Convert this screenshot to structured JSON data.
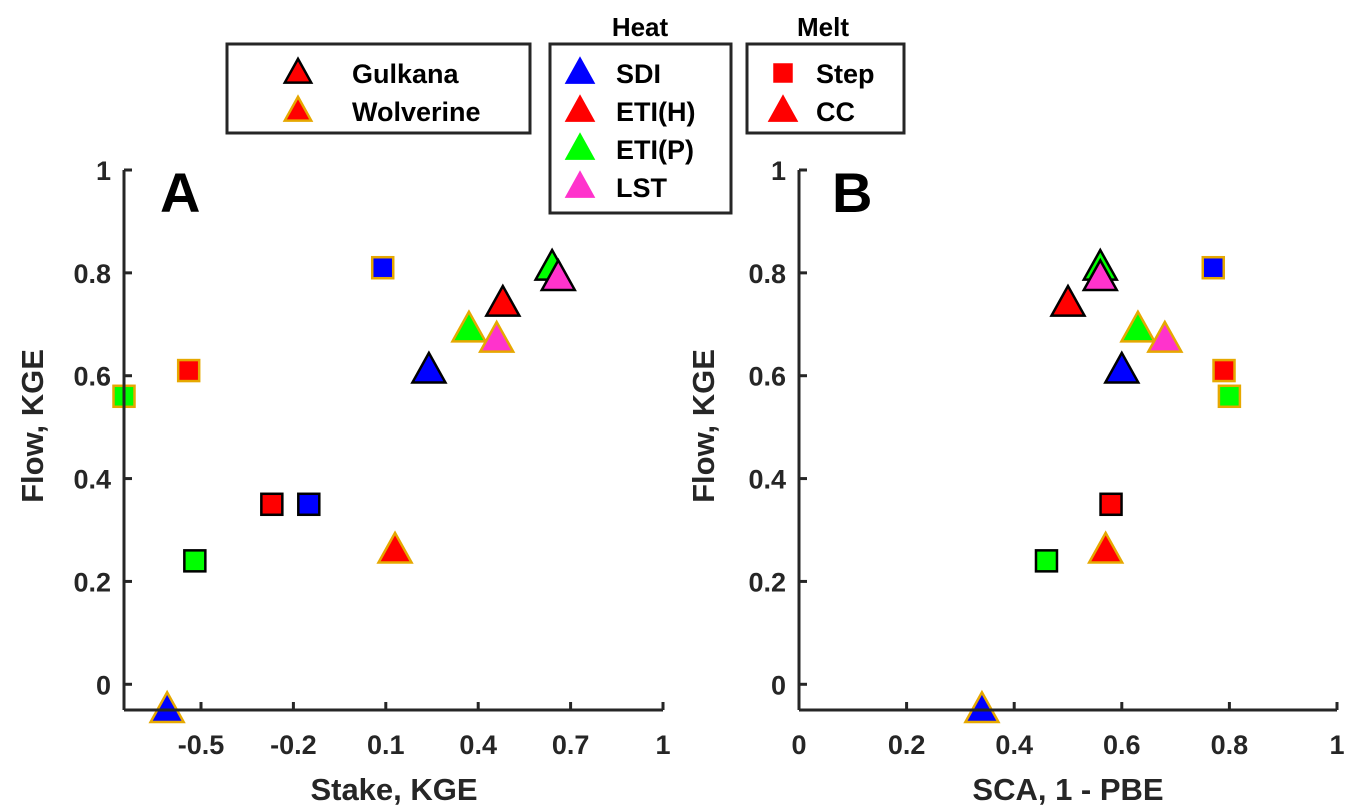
{
  "colors": {
    "SDI": "#0000ff",
    "ETI(H)": "#ff0000",
    "ETI(P)": "#00ff00",
    "LST": "#ff33cc",
    "Gulkana": "#000000",
    "Wolverine": "#e6a800",
    "axis": "#262626"
  },
  "legends": {
    "glacier": {
      "items": [
        {
          "label": "Gulkana",
          "fill": "#ff0000",
          "edge": "#000000",
          "marker": "triangle"
        },
        {
          "label": "Wolverine",
          "fill": "#ff0000",
          "edge": "#e6a800",
          "marker": "triangle"
        }
      ]
    },
    "heat": {
      "title": "Heat",
      "items": [
        {
          "label": "SDI",
          "fill": "#0000ff",
          "marker": "triangle"
        },
        {
          "label": "ETI(H)",
          "fill": "#ff0000",
          "marker": "triangle"
        },
        {
          "label": "ETI(P)",
          "fill": "#00ff00",
          "marker": "triangle"
        },
        {
          "label": "LST",
          "fill": "#ff33cc",
          "marker": "triangle"
        }
      ]
    },
    "melt": {
      "title": "Melt",
      "items": [
        {
          "label": "Step",
          "fill": "#ff0000",
          "marker": "square"
        },
        {
          "label": "CC",
          "fill": "#ff0000",
          "marker": "triangle"
        }
      ]
    }
  },
  "chart_data": [
    {
      "type": "scatter",
      "panel_letter": "A",
      "xlabel": "Stake, KGE",
      "ylabel": "Flow, KGE",
      "xlim": [
        -0.75,
        1.0
      ],
      "ylim": [
        -0.05,
        1.0
      ],
      "xticks": [
        -0.5,
        -0.2,
        0.1,
        0.4,
        0.7,
        1
      ],
      "xtick_labels": [
        "-0.5",
        "-0.2",
        "0.1",
        "0.4",
        "0.7",
        "1"
      ],
      "yticks": [
        0,
        0.2,
        0.4,
        0.6,
        0.8,
        1
      ],
      "ytick_labels": [
        "0",
        "0.2",
        "0.4",
        "0.6",
        "0.8",
        "1"
      ],
      "points": [
        {
          "x": -0.75,
          "y": 0.56,
          "heat": "ETI(P)",
          "melt": "Step",
          "glacier": "Wolverine"
        },
        {
          "x": -0.54,
          "y": 0.61,
          "heat": "ETI(H)",
          "melt": "Step",
          "glacier": "Wolverine"
        },
        {
          "x": 0.09,
          "y": 0.81,
          "heat": "SDI",
          "melt": "Step",
          "glacier": "Wolverine"
        },
        {
          "x": -0.27,
          "y": 0.35,
          "heat": "ETI(H)",
          "melt": "Step",
          "glacier": "Gulkana"
        },
        {
          "x": -0.15,
          "y": 0.35,
          "heat": "SDI",
          "melt": "Step",
          "glacier": "Gulkana"
        },
        {
          "x": -0.52,
          "y": 0.24,
          "heat": "ETI(P)",
          "melt": "Step",
          "glacier": "Gulkana"
        },
        {
          "x": -0.61,
          "y": -0.05,
          "heat": "SDI",
          "melt": "CC",
          "glacier": "Wolverine"
        },
        {
          "x": 0.13,
          "y": 0.26,
          "heat": "ETI(H)",
          "melt": "CC",
          "glacier": "Wolverine"
        },
        {
          "x": 0.24,
          "y": 0.61,
          "heat": "SDI",
          "melt": "CC",
          "glacier": "Gulkana"
        },
        {
          "x": 0.37,
          "y": 0.69,
          "heat": "ETI(P)",
          "melt": "CC",
          "glacier": "Wolverine"
        },
        {
          "x": 0.46,
          "y": 0.67,
          "heat": "LST",
          "melt": "CC",
          "glacier": "Wolverine"
        },
        {
          "x": 0.48,
          "y": 0.74,
          "heat": "ETI(H)",
          "melt": "CC",
          "glacier": "Gulkana"
        },
        {
          "x": 0.64,
          "y": 0.81,
          "heat": "ETI(P)",
          "melt": "CC",
          "glacier": "Gulkana"
        },
        {
          "x": 0.66,
          "y": 0.79,
          "heat": "LST",
          "melt": "CC",
          "glacier": "Gulkana"
        }
      ]
    },
    {
      "type": "scatter",
      "panel_letter": "B",
      "xlabel": "SCA, 1 - PBE",
      "ylabel": "Flow, KGE",
      "xlim": [
        0,
        1
      ],
      "ylim": [
        -0.05,
        1.0
      ],
      "xticks": [
        0,
        0.2,
        0.4,
        0.6,
        0.8,
        1
      ],
      "xtick_labels": [
        "0",
        "0.2",
        "0.4",
        "0.6",
        "0.8",
        "1"
      ],
      "yticks": [
        0,
        0.2,
        0.4,
        0.6,
        0.8,
        1
      ],
      "ytick_labels": [
        "0",
        "0.2",
        "0.4",
        "0.6",
        "0.8",
        "1"
      ],
      "points": [
        {
          "x": 0.77,
          "y": 0.81,
          "heat": "SDI",
          "melt": "Step",
          "glacier": "Wolverine"
        },
        {
          "x": 0.79,
          "y": 0.61,
          "heat": "ETI(H)",
          "melt": "Step",
          "glacier": "Wolverine"
        },
        {
          "x": 0.8,
          "y": 0.56,
          "heat": "ETI(P)",
          "melt": "Step",
          "glacier": "Wolverine"
        },
        {
          "x": 0.58,
          "y": 0.35,
          "heat": "ETI(H)",
          "melt": "Step",
          "glacier": "Gulkana"
        },
        {
          "x": 0.46,
          "y": 0.24,
          "heat": "ETI(P)",
          "melt": "Step",
          "glacier": "Gulkana"
        },
        {
          "x": 0.34,
          "y": -0.05,
          "heat": "SDI",
          "melt": "CC",
          "glacier": "Wolverine"
        },
        {
          "x": 0.57,
          "y": 0.26,
          "heat": "ETI(H)",
          "melt": "CC",
          "glacier": "Wolverine"
        },
        {
          "x": 0.6,
          "y": 0.61,
          "heat": "SDI",
          "melt": "CC",
          "glacier": "Gulkana"
        },
        {
          "x": 0.5,
          "y": 0.74,
          "heat": "ETI(H)",
          "melt": "CC",
          "glacier": "Gulkana"
        },
        {
          "x": 0.56,
          "y": 0.81,
          "heat": "ETI(P)",
          "melt": "CC",
          "glacier": "Gulkana"
        },
        {
          "x": 0.56,
          "y": 0.79,
          "heat": "LST",
          "melt": "CC",
          "glacier": "Gulkana"
        },
        {
          "x": 0.63,
          "y": 0.69,
          "heat": "ETI(P)",
          "melt": "CC",
          "glacier": "Wolverine"
        },
        {
          "x": 0.68,
          "y": 0.67,
          "heat": "LST",
          "melt": "CC",
          "glacier": "Wolverine"
        }
      ]
    }
  ]
}
